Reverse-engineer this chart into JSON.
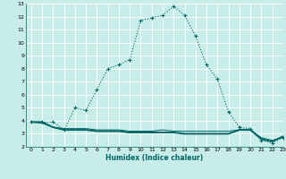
{
  "xlabel": "Humidex (Indice chaleur)",
  "bg_color": "#c8ece8",
  "grid_color": "#ffffff",
  "line_color": "#006666",
  "x_main": [
    0,
    1,
    2,
    3,
    4,
    5,
    6,
    7,
    8,
    9,
    10,
    11,
    12,
    13,
    14,
    15,
    16,
    17,
    18,
    19,
    20,
    21,
    22,
    23
  ],
  "y_main": [
    3.9,
    3.9,
    3.9,
    3.3,
    5.0,
    4.8,
    6.4,
    8.0,
    8.3,
    8.7,
    11.7,
    11.9,
    12.1,
    12.8,
    12.1,
    10.5,
    8.3,
    7.2,
    4.7,
    3.5,
    3.4,
    2.5,
    2.3,
    2.7
  ],
  "x_flat1": [
    0,
    1,
    2,
    3,
    4,
    5,
    6,
    7,
    8,
    9,
    10,
    11,
    12,
    13,
    14,
    15,
    16,
    17,
    18,
    19,
    20,
    21,
    22,
    23
  ],
  "y_flat1": [
    3.9,
    3.9,
    3.5,
    3.3,
    3.3,
    3.3,
    3.2,
    3.2,
    3.2,
    3.1,
    3.1,
    3.1,
    3.1,
    3.1,
    3.0,
    3.0,
    3.0,
    3.0,
    3.0,
    3.3,
    3.3,
    2.6,
    2.4,
    2.8
  ],
  "x_flat2": [
    0,
    1,
    2,
    3,
    4,
    5,
    6,
    7,
    8,
    9,
    10,
    11,
    12,
    13,
    14,
    15,
    16,
    17,
    18,
    19,
    20,
    21,
    22,
    23
  ],
  "y_flat2": [
    3.9,
    3.8,
    3.5,
    3.4,
    3.4,
    3.4,
    3.3,
    3.3,
    3.3,
    3.2,
    3.2,
    3.2,
    3.3,
    3.2,
    3.2,
    3.2,
    3.2,
    3.2,
    3.2,
    3.3,
    3.3,
    2.7,
    2.5,
    2.7
  ],
  "ylim": [
    2,
    13
  ],
  "xlim": [
    -0.5,
    23
  ],
  "yticks": [
    2,
    3,
    4,
    5,
    6,
    7,
    8,
    9,
    10,
    11,
    12,
    13
  ],
  "xticks": [
    0,
    1,
    2,
    3,
    4,
    5,
    6,
    7,
    8,
    9,
    10,
    11,
    12,
    13,
    14,
    15,
    16,
    17,
    18,
    19,
    20,
    21,
    22,
    23
  ]
}
